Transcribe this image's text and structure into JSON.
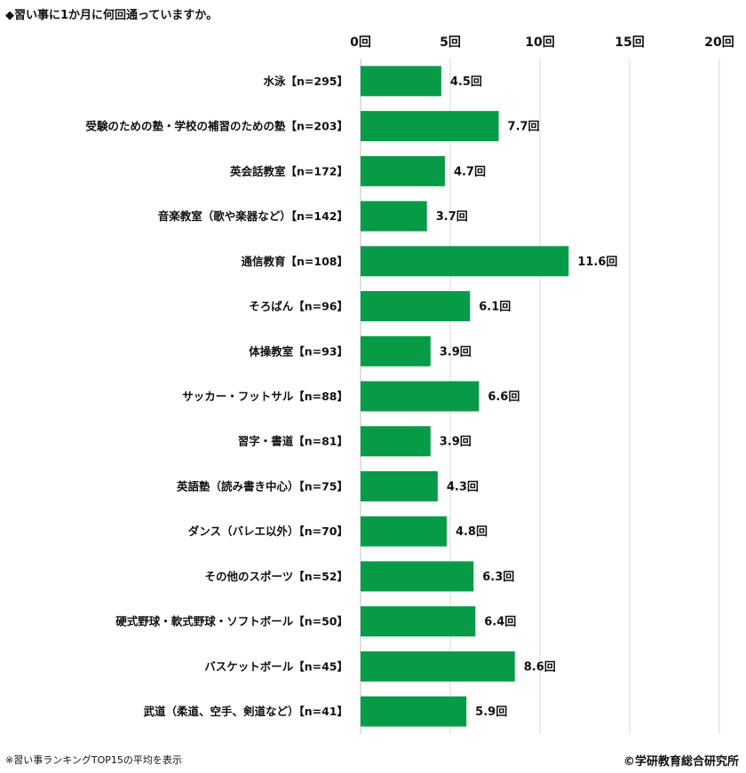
{
  "title": "◆習い事に1か月に何回通っていますか。",
  "footnote": "※習い事ランキングTOP15の平均を表示",
  "credit": "©学研教育総合研究所",
  "colors": {
    "bar": "#079b47",
    "grid": "#d9d9d9",
    "axis": "#bfbfbf"
  },
  "chart_data": {
    "type": "bar",
    "orientation": "horizontal",
    "xlim": [
      0,
      20
    ],
    "ticks": [
      0,
      5,
      10,
      15,
      20
    ],
    "tick_labels": [
      "0回",
      "5回",
      "10回",
      "15回",
      "20回"
    ],
    "unit": "回",
    "grid": true,
    "categories": [
      "水泳【n=295】",
      "受験のための塾・学校の補習のための塾【n=203】",
      "英会話教室【n=172】",
      "音楽教室（歌や楽器など）【n=142】",
      "通信教育【n=108】",
      "そろばん【n=96】",
      "体操教室【n=93】",
      "サッカー・フットサル【n=88】",
      "習字・書道【n=81】",
      "英語塾（読み書き中心）【n=75】",
      "ダンス（バレエ以外）【n=70】",
      "その他のスポーツ【n=52】",
      "硬式野球・軟式野球・ソフトボール【n=50】",
      "バスケットボール【n=45】",
      "武道（柔道、空手、剣道など）【n=41】"
    ],
    "values": [
      4.5,
      7.7,
      4.7,
      3.7,
      11.6,
      6.1,
      3.9,
      6.6,
      3.9,
      4.3,
      4.8,
      6.3,
      6.4,
      8.6,
      5.9
    ],
    "value_labels": [
      "4.5回",
      "7.7回",
      "4.7回",
      "3.7回",
      "11.6回",
      "6.1回",
      "3.9回",
      "6.6回",
      "3.9回",
      "4.3回",
      "4.8回",
      "6.3回",
      "6.4回",
      "8.6回",
      "5.9回"
    ]
  }
}
